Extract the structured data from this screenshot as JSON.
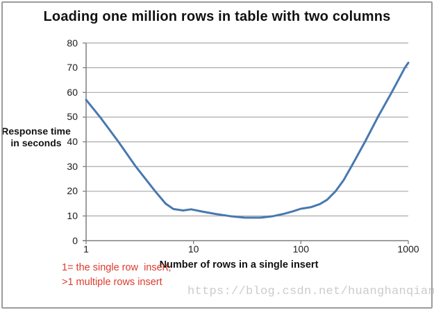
{
  "page": {
    "background": "#ffffff",
    "border_color": "#9b9b9b"
  },
  "chart_data": {
    "type": "line",
    "title": "Loading one million rows in table with two columns",
    "xlabel": "Number of rows in a single insert",
    "ylabel": "Response time in seconds",
    "ylabel_lines": [
      "Response time",
      "in seconds"
    ],
    "x_scale": "log",
    "xlim": [
      1,
      1000
    ],
    "ylim": [
      0,
      80
    ],
    "x_ticks": [
      1,
      10,
      100,
      1000
    ],
    "y_ticks": [
      0,
      10,
      20,
      30,
      40,
      50,
      60,
      70,
      80
    ],
    "grid": "horizontal",
    "legend": "none",
    "series": [
      {
        "name": "Response time in seconds",
        "color": "#4878b0",
        "points": [
          [
            1,
            57
          ],
          [
            1.35,
            50
          ],
          [
            2,
            40
          ],
          [
            2.9,
            30
          ],
          [
            4.4,
            20
          ],
          [
            5.5,
            15
          ],
          [
            6.5,
            12.8
          ],
          [
            8,
            12.2
          ],
          [
            9.5,
            12.7
          ],
          [
            12,
            11.8
          ],
          [
            16,
            10.8
          ],
          [
            22,
            9.9
          ],
          [
            30,
            9.3
          ],
          [
            42,
            9.3
          ],
          [
            55,
            9.9
          ],
          [
            70,
            10.9
          ],
          [
            85,
            11.9
          ],
          [
            100,
            12.9
          ],
          [
            125,
            13.6
          ],
          [
            150,
            14.8
          ],
          [
            175,
            16.5
          ],
          [
            210,
            20
          ],
          [
            250,
            24.5
          ],
          [
            295,
            30
          ],
          [
            395,
            40
          ],
          [
            520,
            50
          ],
          [
            700,
            60
          ],
          [
            930,
            70
          ],
          [
            1000,
            72
          ]
        ]
      }
    ],
    "colors": {
      "line": "#4878b0",
      "gridline": "#a9a9a9",
      "axis": "#7f7f7f",
      "text": "#1a1a1a"
    },
    "annotation": {
      "line1": "1= the single row  insert,",
      "line2": ">1 multiple rows insert",
      "color": "#dd3a2c"
    }
  },
  "watermark": {
    "text": "https://blog.csdn.net/huanghanqian",
    "color": "#cccccc"
  }
}
